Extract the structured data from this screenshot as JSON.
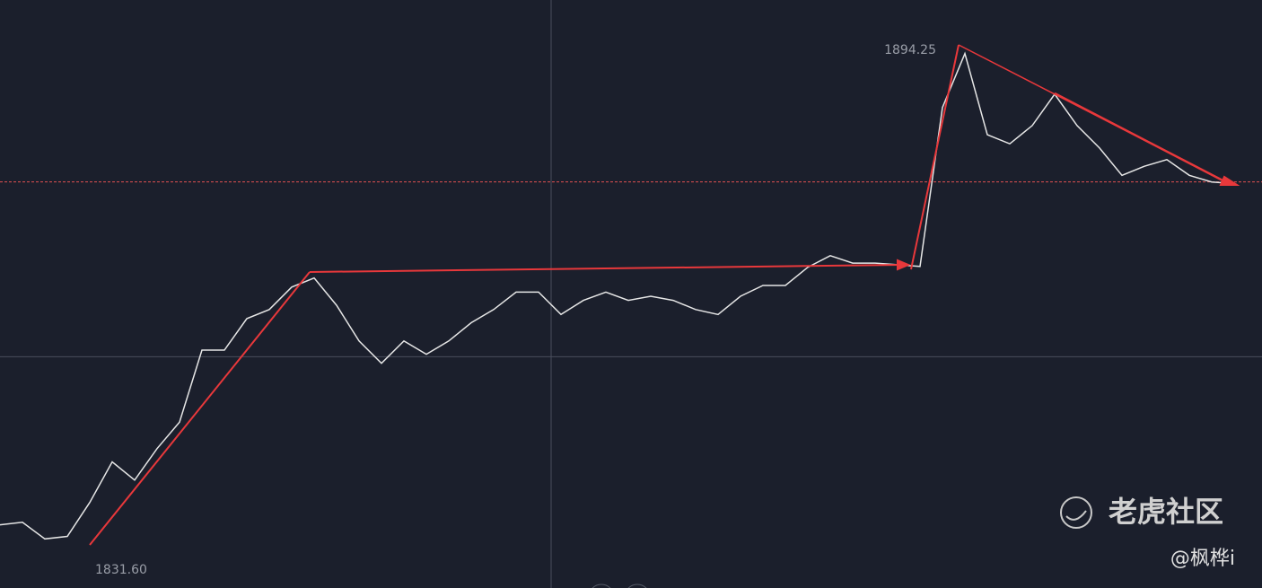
{
  "chart_data": {
    "type": "line",
    "values": [
      1836.3,
      1836.6,
      1834.6,
      1834.9,
      1839.0,
      1843.9,
      1841.7,
      1845.5,
      1848.7,
      1857.4,
      1857.4,
      1861.2,
      1862.3,
      1865.0,
      1866.1,
      1862.8,
      1858.5,
      1855.8,
      1858.5,
      1856.9,
      1858.5,
      1860.7,
      1862.3,
      1864.4,
      1864.4,
      1861.7,
      1863.4,
      1864.4,
      1863.4,
      1863.9,
      1863.4,
      1862.3,
      1861.7,
      1863.9,
      1865.2,
      1865.2,
      1867.4,
      1868.8,
      1867.9,
      1867.9,
      1867.7,
      1867.5,
      1886.7,
      1893.2,
      1883.4,
      1882.3,
      1884.5,
      1888.3,
      1884.5,
      1881.8,
      1878.5,
      1879.6,
      1880.4,
      1878.5,
      1877.7,
      1877.5
    ],
    "color": "#e6e6e6",
    "ylim": [
      1828.67,
      1899.67
    ],
    "high": 1894.25,
    "low": {
      "value": 1831.6,
      "label": "1831.60"
    },
    "last_price": 1877.7,
    "last_price_color": "#e05050",
    "crosshair": 1856.6,
    "watermark": "老虎社区",
    "author": "@枫桦i"
  }
}
